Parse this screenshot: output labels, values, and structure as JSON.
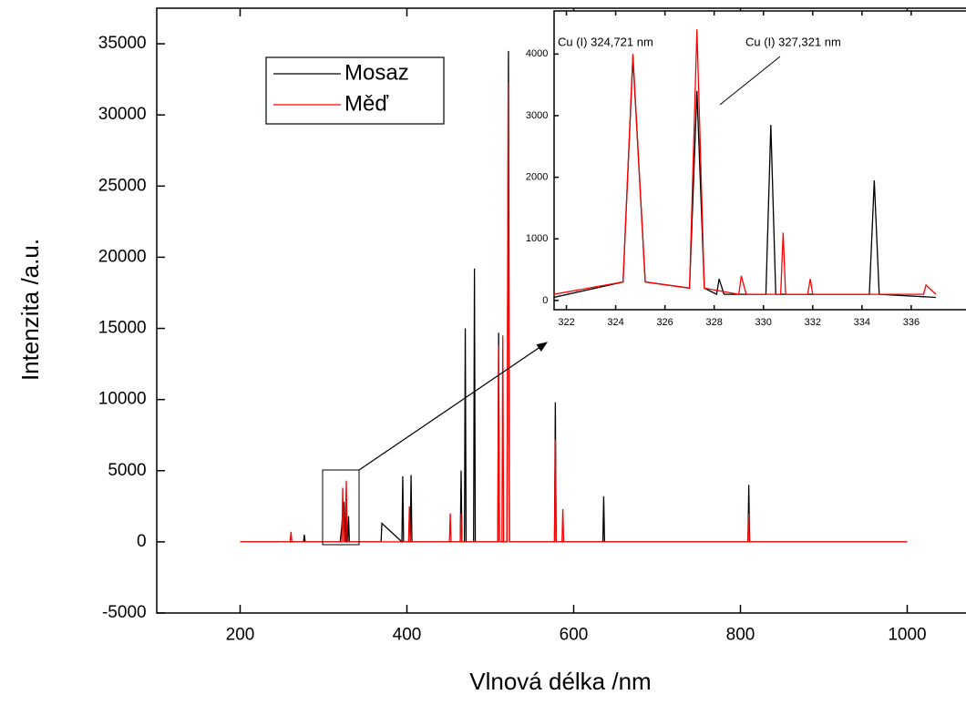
{
  "chart_data": [
    {
      "type": "line",
      "x_label": "Vlnová délka /nm",
      "y_label": "Intenzita /a.u.",
      "xlim": [
        100,
        1100
      ],
      "ylim": [
        -5000,
        37500
      ],
      "xticks": [
        200,
        400,
        600,
        800,
        1000
      ],
      "yticks": [
        -5000,
        0,
        5000,
        10000,
        15000,
        20000,
        25000,
        30000,
        35000
      ],
      "legend": "upper left",
      "series": [
        {
          "name": "Mosaz",
          "color": "#000000",
          "x": [
            200,
            276,
            277,
            278,
            320,
            324.7,
            325.7,
            327,
            327.3,
            328,
            329,
            330,
            331,
            360,
            369,
            370,
            394,
            395,
            396,
            404,
            405,
            406,
            464,
            465,
            466,
            469,
            470,
            471,
            480,
            481,
            482,
            509,
            510,
            511,
            520,
            521.8,
            523,
            577,
            578,
            579,
            635,
            636,
            637,
            809,
            810,
            811,
            1000
          ],
          "values": [
            0,
            0,
            500,
            0,
            0,
            2800,
            0,
            0,
            2700,
            0,
            0,
            1800,
            0,
            0,
            0,
            1300,
            0,
            4600,
            0,
            0,
            4700,
            0,
            0,
            5000,
            0,
            0,
            15000,
            0,
            0,
            19200,
            0,
            0,
            14700,
            0,
            0,
            34500,
            0,
            0,
            9800,
            0,
            0,
            3200,
            0,
            0,
            4000,
            0,
            0
          ]
        },
        {
          "name": "Měď",
          "color": "#ff0000",
          "x": [
            200,
            260,
            261,
            262,
            320,
            322,
            323,
            324,
            325,
            326,
            327.3,
            328.5,
            400,
            402,
            403,
            404,
            405,
            406,
            451,
            452,
            453,
            464,
            465,
            466,
            509,
            510,
            511,
            514,
            515,
            516,
            520,
            521.4,
            523,
            577,
            578,
            579,
            586,
            587,
            588,
            809,
            810,
            811,
            1000
          ],
          "values": [
            0,
            0,
            700,
            0,
            0,
            0,
            3800,
            0,
            0,
            0,
            4300,
            0,
            0,
            0,
            2500,
            0,
            0,
            0,
            0,
            2000,
            0,
            0,
            2000,
            0,
            0,
            13800,
            0,
            0,
            14500,
            0,
            0,
            32300,
            0,
            0,
            7200,
            0,
            0,
            2300,
            0,
            0,
            2000,
            0,
            0
          ]
        }
      ]
    },
    {
      "type": "line",
      "xlim": [
        321.5,
        340
      ],
      "ylim": [
        -150,
        4700
      ],
      "xticks": [
        322,
        324,
        326,
        328,
        330,
        332,
        334,
        336
      ],
      "yticks": [
        0,
        1000,
        2000,
        3000,
        4000
      ],
      "annotations": [
        "Cu (I) 324,721 nm",
        "Cu (I) 327,321 nm"
      ],
      "series": [
        {
          "color": "#000000",
          "x": [
            321.5,
            324.3,
            324.7,
            325.2,
            327,
            327.3,
            327.6,
            328.1,
            328.2,
            328.4,
            330.1,
            330.3,
            330.5,
            334.3,
            334.5,
            334.7,
            337
          ],
          "values": [
            50,
            300,
            3950,
            300,
            200,
            3400,
            200,
            100,
            350,
            100,
            100,
            2850,
            100,
            100,
            1950,
            100,
            50
          ]
        },
        {
          "color": "#ff0000",
          "x": [
            321.5,
            324.3,
            324.7,
            325.2,
            327,
            327.3,
            327.6,
            329,
            329.1,
            329.3,
            330.7,
            330.8,
            330.9,
            331.8,
            331.9,
            332,
            336.5,
            336.6,
            337
          ],
          "values": [
            100,
            300,
            4000,
            300,
            200,
            4400,
            200,
            100,
            400,
            100,
            100,
            1100,
            100,
            100,
            350,
            100,
            100,
            250,
            100
          ]
        }
      ]
    }
  ]
}
